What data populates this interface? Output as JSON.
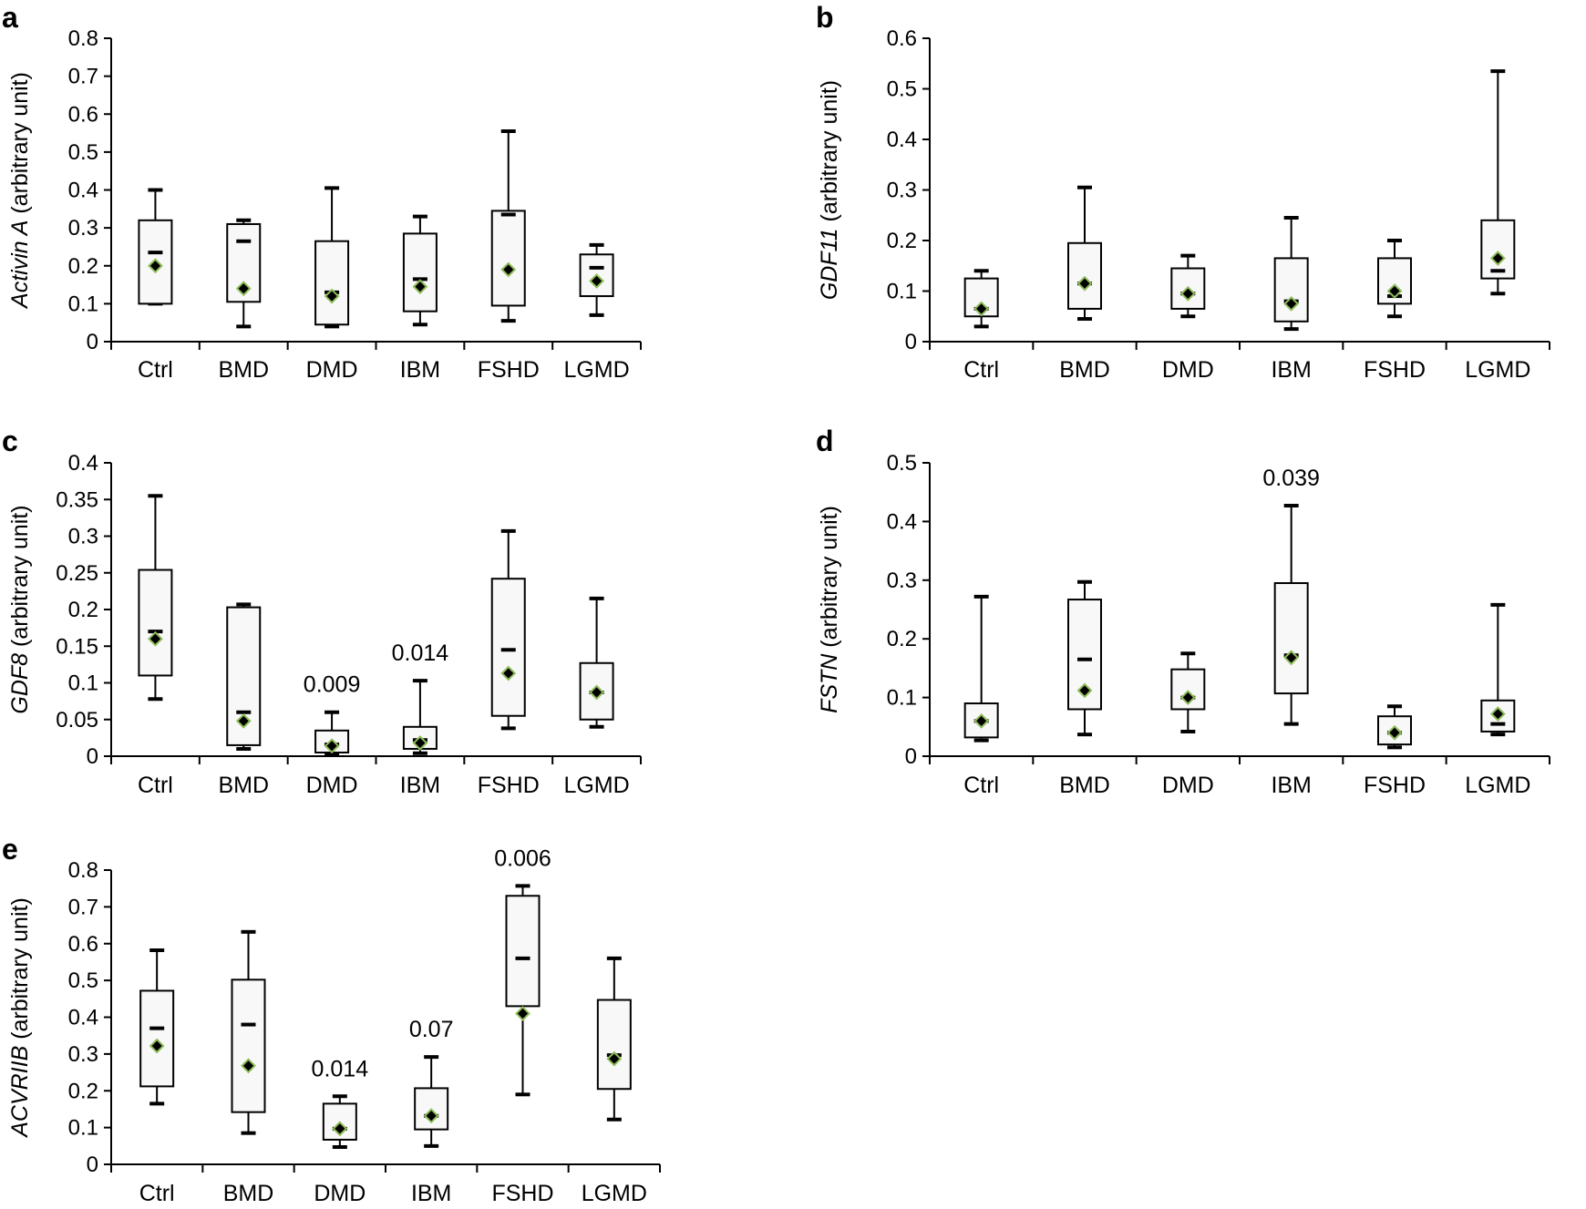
{
  "figure": {
    "panel_letters": [
      "a",
      "b",
      "c",
      "d",
      "e"
    ]
  },
  "colors": {
    "box_fill": "#f8f8f8",
    "mean_fill": "#000000",
    "mean_outline": "#8fbc5a",
    "line": "#000000"
  },
  "chart_data": [
    {
      "type": "box",
      "panel": "a",
      "categories": [
        "Ctrl",
        "BMD",
        "DMD",
        "IBM",
        "FSHD",
        "LGMD"
      ],
      "y_axis": {
        "gene": "Activin A",
        "unit": "(arbitrary unit)",
        "ylim": [
          0,
          0.8
        ],
        "ticks": [
          0,
          0.1,
          0.2,
          0.3,
          0.4,
          0.5,
          0.6,
          0.7,
          0.8
        ],
        "tick_labels": [
          "0",
          "0.1",
          "0.2",
          "0.3",
          "0.4",
          "0.5",
          "0.6",
          "0.7",
          "0.8"
        ]
      },
      "series": [
        {
          "name": "Ctrl",
          "min": 0.1,
          "q1": 0.1,
          "median": 0.235,
          "q3": 0.32,
          "max": 0.4,
          "mean": 0.2,
          "annotation": ""
        },
        {
          "name": "BMD",
          "min": 0.04,
          "q1": 0.105,
          "median": 0.265,
          "q3": 0.31,
          "max": 0.32,
          "mean": 0.14,
          "annotation": ""
        },
        {
          "name": "DMD",
          "min": 0.04,
          "q1": 0.045,
          "median": 0.13,
          "q3": 0.265,
          "max": 0.405,
          "mean": 0.12,
          "annotation": ""
        },
        {
          "name": "IBM",
          "min": 0.045,
          "q1": 0.08,
          "median": 0.165,
          "q3": 0.285,
          "max": 0.33,
          "mean": 0.145,
          "annotation": ""
        },
        {
          "name": "FSHD",
          "min": 0.055,
          "q1": 0.095,
          "median": 0.335,
          "q3": 0.345,
          "max": 0.555,
          "mean": 0.19,
          "annotation": ""
        },
        {
          "name": "LGMD",
          "min": 0.07,
          "q1": 0.12,
          "median": 0.195,
          "q3": 0.23,
          "max": 0.255,
          "mean": 0.16,
          "annotation": ""
        }
      ]
    },
    {
      "type": "box",
      "panel": "b",
      "categories": [
        "Ctrl",
        "BMD",
        "DMD",
        "IBM",
        "FSHD",
        "LGMD"
      ],
      "y_axis": {
        "gene": "GDF11",
        "unit": "(arbitrary unit)",
        "ylim": [
          0,
          0.6
        ],
        "ticks": [
          0,
          0.1,
          0.2,
          0.3,
          0.4,
          0.5,
          0.6
        ],
        "tick_labels": [
          "0",
          "0.1",
          "0.2",
          "0.3",
          "0.4",
          "0.5",
          "0.6"
        ]
      },
      "series": [
        {
          "name": "Ctrl",
          "min": 0.03,
          "q1": 0.05,
          "median": 0.065,
          "q3": 0.125,
          "max": 0.14,
          "mean": 0.065,
          "annotation": ""
        },
        {
          "name": "BMD",
          "min": 0.045,
          "q1": 0.065,
          "median": 0.115,
          "q3": 0.195,
          "max": 0.305,
          "mean": 0.115,
          "annotation": ""
        },
        {
          "name": "DMD",
          "min": 0.05,
          "q1": 0.065,
          "median": 0.095,
          "q3": 0.145,
          "max": 0.17,
          "mean": 0.095,
          "annotation": ""
        },
        {
          "name": "IBM",
          "min": 0.025,
          "q1": 0.04,
          "median": 0.08,
          "q3": 0.165,
          "max": 0.245,
          "mean": 0.075,
          "annotation": ""
        },
        {
          "name": "FSHD",
          "min": 0.05,
          "q1": 0.075,
          "median": 0.09,
          "q3": 0.165,
          "max": 0.2,
          "mean": 0.1,
          "annotation": ""
        },
        {
          "name": "LGMD",
          "min": 0.095,
          "q1": 0.125,
          "median": 0.14,
          "q3": 0.24,
          "max": 0.535,
          "mean": 0.165,
          "annotation": ""
        }
      ]
    },
    {
      "type": "box",
      "panel": "c",
      "categories": [
        "Ctrl",
        "BMD",
        "DMD",
        "IBM",
        "FSHD",
        "LGMD"
      ],
      "y_axis": {
        "gene": "GDF8",
        "unit": "(arbitrary unit)",
        "ylim": [
          0,
          0.4
        ],
        "ticks": [
          0,
          0.05,
          0.1,
          0.15,
          0.2,
          0.25,
          0.3,
          0.35,
          0.4
        ],
        "tick_labels": [
          "0",
          "0.05",
          "0.1",
          "0.15",
          "0.2",
          "0.25",
          "0.3",
          "0.35",
          "0.4"
        ]
      },
      "series": [
        {
          "name": "Ctrl",
          "min": 0.078,
          "q1": 0.11,
          "median": 0.17,
          "q3": 0.254,
          "max": 0.355,
          "mean": 0.16,
          "annotation": ""
        },
        {
          "name": "BMD",
          "min": 0.01,
          "q1": 0.015,
          "median": 0.06,
          "q3": 0.203,
          "max": 0.207,
          "mean": 0.048,
          "annotation": ""
        },
        {
          "name": "DMD",
          "min": 0.002,
          "q1": 0.005,
          "median": 0.016,
          "q3": 0.035,
          "max": 0.06,
          "mean": 0.014,
          "annotation": "0.009"
        },
        {
          "name": "IBM",
          "min": 0.004,
          "q1": 0.01,
          "median": 0.022,
          "q3": 0.04,
          "max": 0.103,
          "mean": 0.018,
          "annotation": "0.014"
        },
        {
          "name": "FSHD",
          "min": 0.038,
          "q1": 0.055,
          "median": 0.145,
          "q3": 0.242,
          "max": 0.307,
          "mean": 0.113,
          "annotation": ""
        },
        {
          "name": "LGMD",
          "min": 0.04,
          "q1": 0.05,
          "median": 0.087,
          "q3": 0.127,
          "max": 0.215,
          "mean": 0.087,
          "annotation": ""
        }
      ]
    },
    {
      "type": "box",
      "panel": "d",
      "categories": [
        "Ctrl",
        "BMD",
        "DMD",
        "IBM",
        "FSHD",
        "LGMD"
      ],
      "y_axis": {
        "gene": "FSTN",
        "unit": "(arbitrary unit)",
        "ylim": [
          0,
          0.5
        ],
        "ticks": [
          0,
          0.1,
          0.2,
          0.3,
          0.4,
          0.5
        ],
        "tick_labels": [
          "0",
          "0.1",
          "0.2",
          "0.3",
          "0.4",
          "0.5"
        ]
      },
      "series": [
        {
          "name": "Ctrl",
          "min": 0.027,
          "q1": 0.032,
          "median": 0.06,
          "q3": 0.09,
          "max": 0.272,
          "mean": 0.06,
          "annotation": ""
        },
        {
          "name": "BMD",
          "min": 0.037,
          "q1": 0.08,
          "median": 0.165,
          "q3": 0.267,
          "max": 0.297,
          "mean": 0.112,
          "annotation": ""
        },
        {
          "name": "DMD",
          "min": 0.042,
          "q1": 0.08,
          "median": 0.1,
          "q3": 0.148,
          "max": 0.175,
          "mean": 0.1,
          "annotation": ""
        },
        {
          "name": "IBM",
          "min": 0.055,
          "q1": 0.107,
          "median": 0.172,
          "q3": 0.295,
          "max": 0.427,
          "mean": 0.168,
          "annotation": "0.039"
        },
        {
          "name": "FSHD",
          "min": 0.015,
          "q1": 0.02,
          "median": 0.04,
          "q3": 0.068,
          "max": 0.085,
          "mean": 0.04,
          "annotation": ""
        },
        {
          "name": "LGMD",
          "min": 0.037,
          "q1": 0.042,
          "median": 0.055,
          "q3": 0.095,
          "max": 0.258,
          "mean": 0.072,
          "annotation": ""
        }
      ]
    },
    {
      "type": "box",
      "panel": "e",
      "categories": [
        "Ctrl",
        "BMD",
        "DMD",
        "IBM",
        "FSHD",
        "LGMD"
      ],
      "y_axis": {
        "gene": "ACVRIIB",
        "unit": "(arbitrary unit)",
        "ylim": [
          0,
          0.8
        ],
        "ticks": [
          0,
          0.1,
          0.2,
          0.3,
          0.4,
          0.5,
          0.6,
          0.7,
          0.8
        ],
        "tick_labels": [
          "0",
          "0.1",
          "0.2",
          "0.3",
          "0.4",
          "0.5",
          "0.6",
          "0.7",
          "0.8"
        ]
      },
      "series": [
        {
          "name": "Ctrl",
          "min": 0.165,
          "q1": 0.212,
          "median": 0.37,
          "q3": 0.472,
          "max": 0.582,
          "mean": 0.322,
          "annotation": ""
        },
        {
          "name": "BMD",
          "min": 0.085,
          "q1": 0.142,
          "median": 0.38,
          "q3": 0.502,
          "max": 0.632,
          "mean": 0.268,
          "annotation": ""
        },
        {
          "name": "DMD",
          "min": 0.047,
          "q1": 0.067,
          "median": 0.097,
          "q3": 0.165,
          "max": 0.185,
          "mean": 0.097,
          "annotation": "0.014"
        },
        {
          "name": "IBM",
          "min": 0.05,
          "q1": 0.095,
          "median": 0.132,
          "q3": 0.207,
          "max": 0.292,
          "mean": 0.132,
          "annotation": "0.07"
        },
        {
          "name": "FSHD",
          "min": 0.19,
          "q1": 0.43,
          "median": 0.56,
          "q3": 0.73,
          "max": 0.757,
          "mean": 0.41,
          "annotation": "0.006"
        },
        {
          "name": "LGMD",
          "min": 0.122,
          "q1": 0.205,
          "median": 0.297,
          "q3": 0.447,
          "max": 0.56,
          "mean": 0.287,
          "annotation": ""
        }
      ]
    }
  ]
}
